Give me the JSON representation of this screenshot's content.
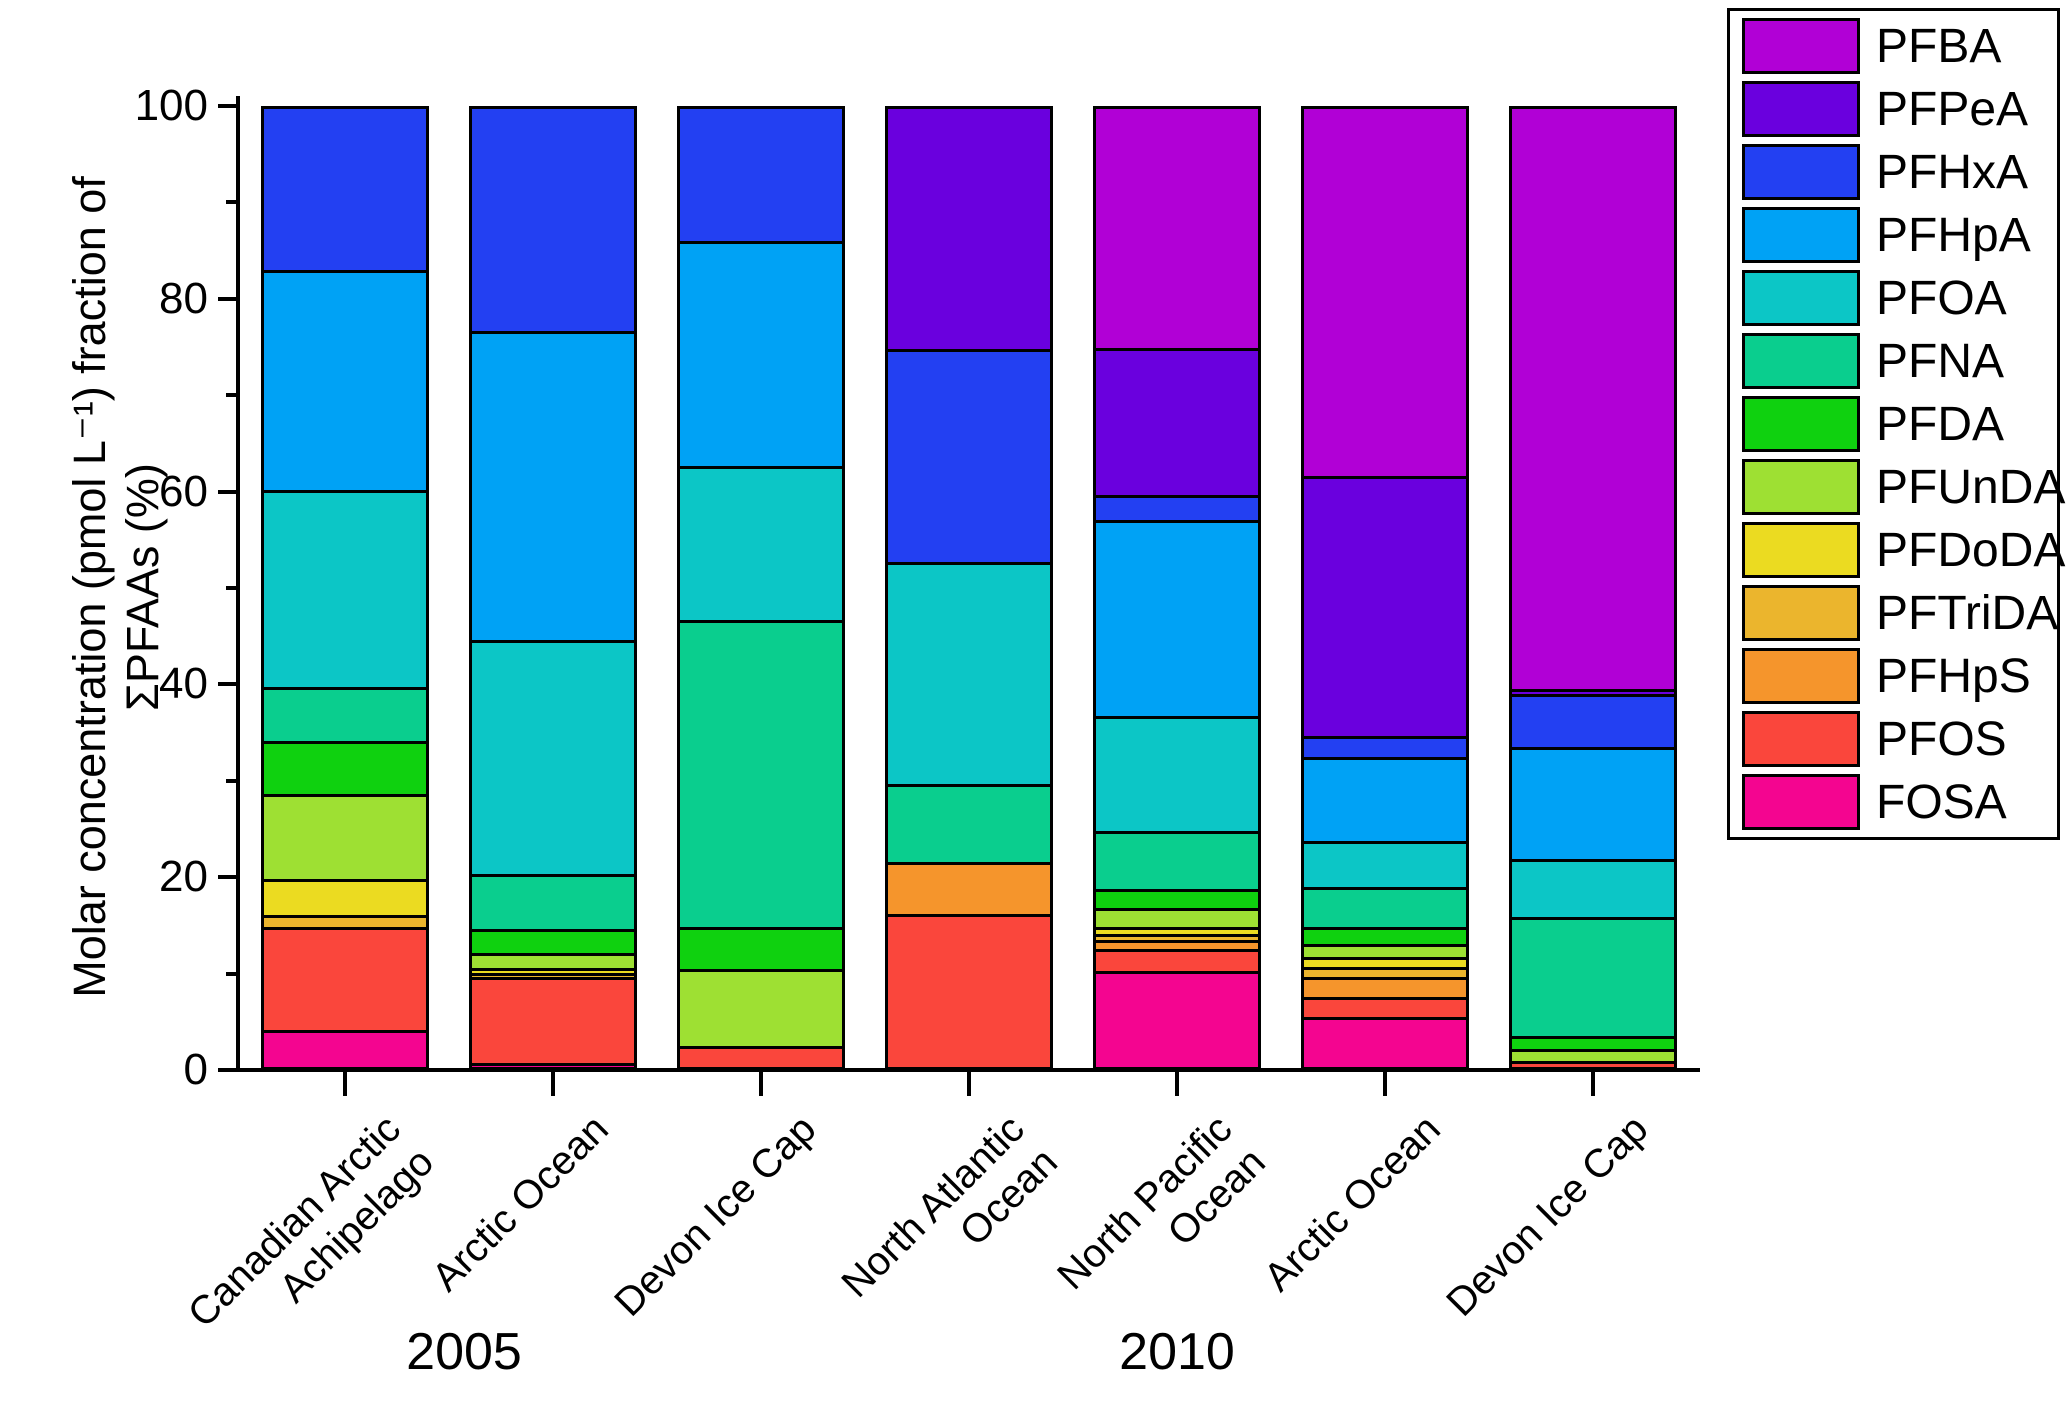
{
  "figure": {
    "group_labels": [
      "2005",
      "2010"
    ]
  },
  "chart_data": {
    "type": "bar",
    "stacked": true,
    "orientation": "vertical",
    "ylabel_line1": "Molar concentration (pmol L⁻¹) fraction of",
    "ylabel_line2": "ΣPFAAs (%)",
    "ylim": [
      0,
      100
    ],
    "yticks_major": [
      0,
      20,
      40,
      60,
      80,
      100
    ],
    "yticks_minor": [
      10,
      30,
      50,
      70,
      90
    ],
    "grid": false,
    "legend_position": "top-right-outside",
    "categories": [
      "Canadian Arctic\nAchipelago",
      "Arctic Ocean",
      "Devon Ice Cap",
      "North Atlantic\nOcean",
      "North Pacific\nOcean",
      "Arctic Ocean",
      "Devon Ice Cap"
    ],
    "category_groups": [
      {
        "label": "2005",
        "category_indexes": [
          0,
          1,
          2
        ]
      },
      {
        "label": "2010",
        "category_indexes": [
          3,
          4,
          5,
          6
        ]
      }
    ],
    "stack_order_bottom_to_top": [
      "FOSA",
      "PFOS",
      "PFHpS",
      "PFTriDA",
      "PFDoDA",
      "PFUnDA",
      "PFDA",
      "PFNA",
      "PFOA",
      "PFHpA",
      "PFHxA",
      "PFPeA",
      "PFBA"
    ],
    "series": [
      {
        "name": "PFBA",
        "color": "#B100D6",
        "values": [
          0,
          0,
          0,
          0,
          25.4,
          38.7,
          60.8
        ]
      },
      {
        "name": "PFPeA",
        "color": "#6A00DE",
        "values": [
          0,
          0,
          0,
          25.5,
          15.3,
          27.0,
          0.5
        ]
      },
      {
        "name": "PFHxA",
        "color": "#2340F2",
        "values": [
          17.3,
          23.7,
          14.3,
          22.1,
          2.6,
          2.1,
          5.5
        ]
      },
      {
        "name": "PFHpA",
        "color": "#00A2F5",
        "values": [
          22.8,
          32.0,
          23.4,
          0,
          20.3,
          8.8,
          11.6
        ]
      },
      {
        "name": "PFOA",
        "color": "#0CC6C6",
        "values": [
          20.5,
          24.3,
          15.9,
          23.0,
          11.9,
          4.7,
          6.0
        ]
      },
      {
        "name": "PFNA",
        "color": "#0ACE8E",
        "values": [
          5.6,
          5.7,
          31.9,
          8.1,
          6.0,
          4.2,
          12.4
        ]
      },
      {
        "name": "PFDA",
        "color": "#0FD10F",
        "values": [
          5.5,
          2.5,
          4.3,
          0,
          2.0,
          1.7,
          1.3
        ]
      },
      {
        "name": "PFUnDA",
        "color": "#9EE033",
        "values": [
          8.8,
          1.5,
          8.0,
          0,
          2.0,
          1.4,
          1.3
        ]
      },
      {
        "name": "PFDoDA",
        "color": "#EBDB21",
        "values": [
          3.7,
          0.6,
          0,
          0,
          0.7,
          1.0,
          0
        ]
      },
      {
        "name": "PFTriDA",
        "color": "#EBB52D",
        "values": [
          1.3,
          0.4,
          0,
          0,
          0.6,
          1.1,
          0
        ]
      },
      {
        "name": "PFHpS",
        "color": "#F5952C",
        "values": [
          0,
          0,
          0,
          5.4,
          1.0,
          2.0,
          0
        ]
      },
      {
        "name": "PFOS",
        "color": "#FA463C",
        "values": [
          10.7,
          8.9,
          2.2,
          15.9,
          2.3,
          2.1,
          0.6
        ]
      },
      {
        "name": "FOSA",
        "color": "#F40590",
        "values": [
          3.8,
          0.4,
          0,
          0,
          9.9,
          5.2,
          0
        ]
      }
    ]
  }
}
